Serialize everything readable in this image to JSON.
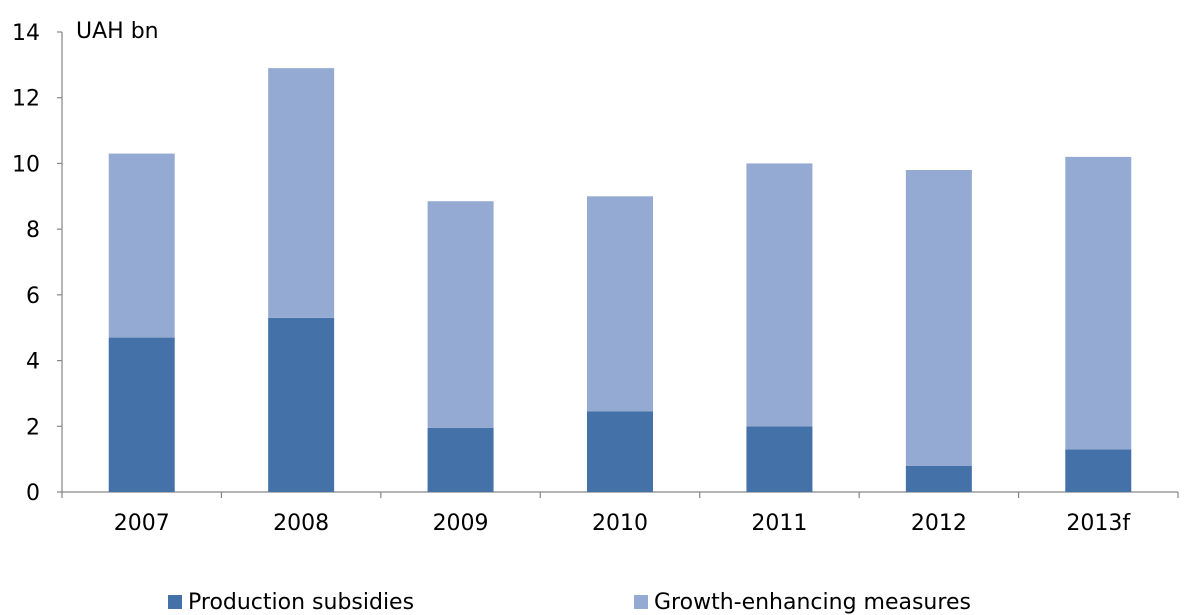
{
  "chart_data": {
    "type": "bar",
    "stacked": true,
    "unit_label": "UAH bn",
    "categories": [
      "2007",
      "2008",
      "2009",
      "2010",
      "2011",
      "2012",
      "2013f"
    ],
    "series": [
      {
        "name": "Production subsidies",
        "color": "#4472a8",
        "values": [
          4.7,
          5.3,
          1.95,
          2.45,
          2.0,
          0.8,
          1.3
        ]
      },
      {
        "name": "Growth-enhancing measures",
        "color": "#95aad2",
        "values": [
          5.6,
          7.6,
          6.9,
          6.55,
          8.0,
          9.0,
          8.9
        ]
      }
    ],
    "ylim": [
      0,
      14
    ],
    "yticks": [
      0,
      2,
      4,
      6,
      8,
      10,
      12,
      14
    ],
    "grid": false,
    "legend_position": "bottom"
  }
}
